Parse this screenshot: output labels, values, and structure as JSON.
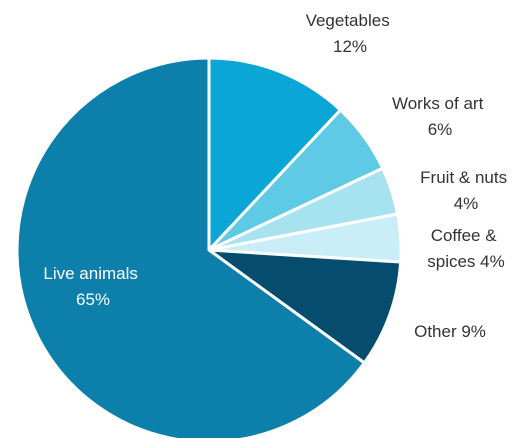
{
  "chart_data": {
    "type": "pie",
    "title": "",
    "slices": [
      {
        "name": "Vegetables",
        "value": 12,
        "value_label": "12%",
        "color": "#0AA6D6"
      },
      {
        "name": "Works of art",
        "value": 6,
        "value_label": "6%",
        "color": "#5ECAE6"
      },
      {
        "name": "Fruit & nuts",
        "value": 4,
        "value_label": "4%",
        "color": "#A7E3EE"
      },
      {
        "name": "Coffee & spices",
        "value": 4,
        "value_label": "4%",
        "color": "#C9EEF8"
      },
      {
        "name": "Other",
        "value": 9,
        "value_label": "9%",
        "color": "#054C6E"
      },
      {
        "name": "Live animals",
        "value": 65,
        "value_label": "65%",
        "color": "#0C7FAA"
      }
    ],
    "start_angle": "12 o'clock",
    "direction": "clockwise",
    "legend": "none"
  },
  "labels": {
    "vegetables": [
      "Vegetables",
      "12%"
    ],
    "works_of_art": [
      "Works of art",
      "6%"
    ],
    "fruit_nuts": [
      "Fruit & nuts",
      "4%"
    ],
    "coffee_spices": [
      "Coffee &",
      "spices 4%"
    ],
    "other": [
      "Other 9%"
    ],
    "live_animals": [
      "Live animals",
      "65%"
    ]
  }
}
